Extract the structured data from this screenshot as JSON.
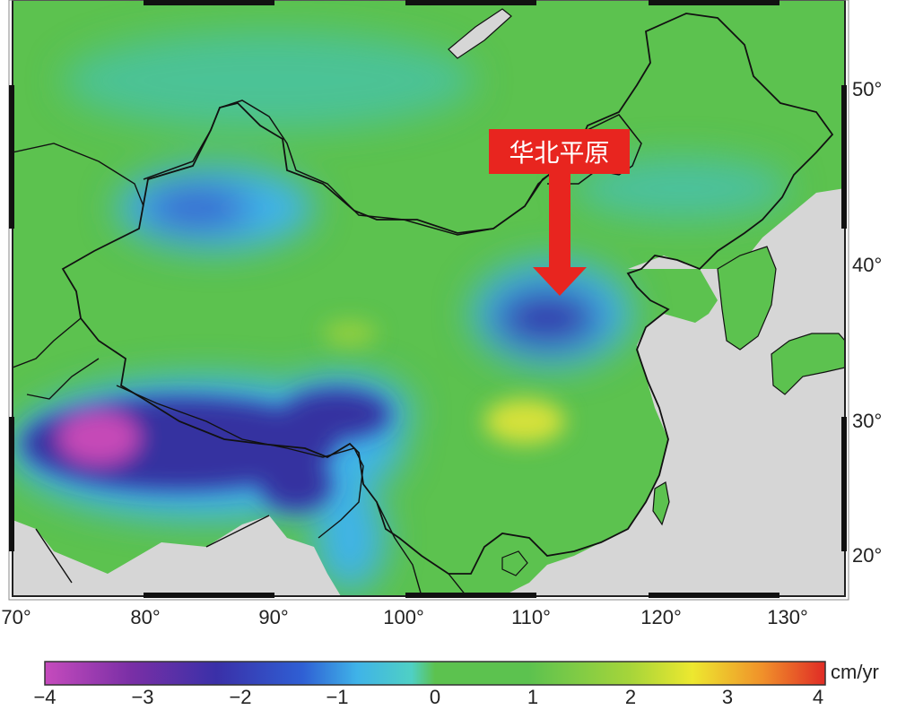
{
  "map": {
    "title": "",
    "annotation": "华北平原",
    "x_ticks": [
      "70°",
      "80°",
      "90°",
      "100°",
      "110°",
      "120°",
      "130°"
    ],
    "y_ticks": [
      "50°",
      "40°",
      "30°",
      "20°"
    ],
    "colorbar": {
      "ticks": [
        "−4",
        "−3",
        "−2",
        "−1",
        "0",
        "1",
        "2",
        "3",
        "4"
      ],
      "unit": "cm/yr",
      "range": [
        -4,
        4
      ]
    },
    "colors": {
      "land_gray": "#d6d6d6",
      "background_green": "#5cc24f",
      "callout_red": "#e8251f"
    }
  }
}
